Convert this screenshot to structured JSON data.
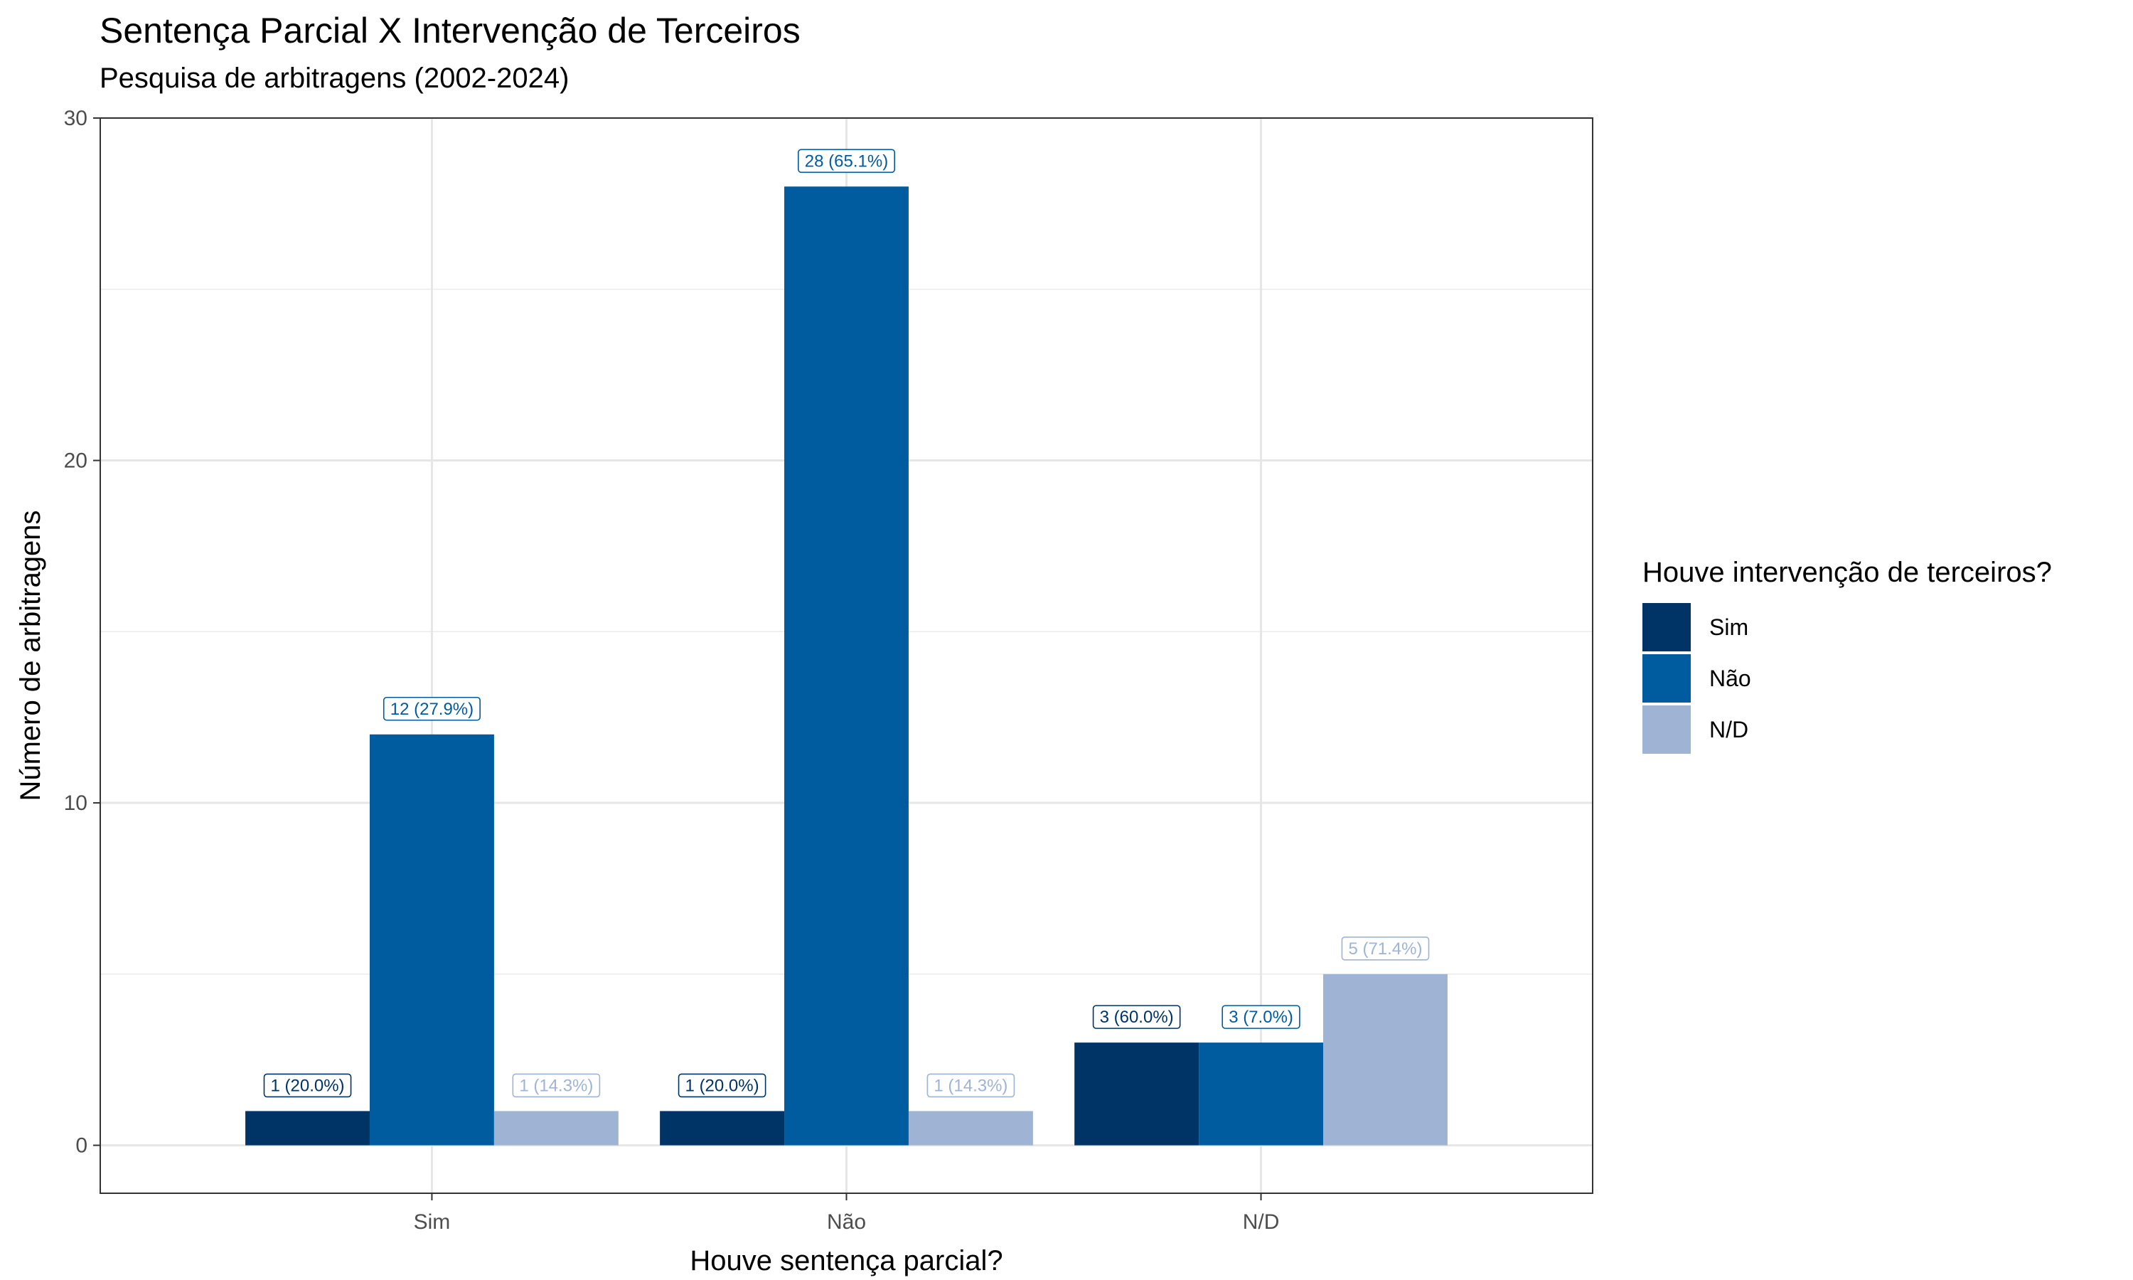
{
  "chart_data": {
    "type": "bar",
    "title": "Sentença Parcial X Intervenção de Terceiros",
    "subtitle": "Pesquisa de arbitragens (2002-2024)",
    "xlabel": "Houve sentença parcial?",
    "ylabel": "Número de arbitragens",
    "categories": [
      "Sim",
      "Não",
      "N/D"
    ],
    "ylim": [
      -1.4,
      30
    ],
    "yticks": [
      0,
      10,
      20,
      30
    ],
    "grid": true,
    "legend": {
      "title": "Houve intervenção de terceiros?",
      "position": "right"
    },
    "series": [
      {
        "name": "Sim",
        "color": "#003366",
        "values": [
          1,
          1,
          3
        ],
        "labels": [
          "1 (20.0%)",
          "1 (20.0%)",
          "3 (60.0%)"
        ]
      },
      {
        "name": "Não",
        "color": "#005b9f",
        "values": [
          12,
          28,
          3
        ],
        "labels": [
          "12 (27.9%)",
          "28 (65.1%)",
          "3 (7.0%)"
        ]
      },
      {
        "name": "N/D",
        "color": "#9fb4d4",
        "values": [
          1,
          1,
          5
        ],
        "labels": [
          "1 (14.3%)",
          "1 (14.3%)",
          "5 (71.4%)"
        ]
      }
    ]
  }
}
